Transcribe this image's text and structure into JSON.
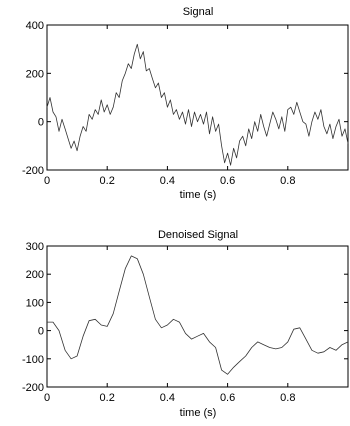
{
  "chart_data": [
    {
      "type": "line",
      "title": "Signal",
      "xlabel": "time (s)",
      "ylabel": "",
      "xlim": [
        0,
        1
      ],
      "ylim": [
        -200,
        400
      ],
      "xticks": [
        0,
        0.2,
        0.4,
        0.6,
        0.8
      ],
      "xtick_labels": [
        "0",
        "0.2",
        "0.4",
        "0.6",
        "0.8"
      ],
      "yticks": [
        -200,
        0,
        200,
        400
      ],
      "ytick_labels": [
        "-200",
        "0",
        "200",
        "400"
      ],
      "grid": false,
      "series": [
        {
          "x": [
            0,
            0.01,
            0.02,
            0.03,
            0.04,
            0.05,
            0.06,
            0.07,
            0.08,
            0.09,
            0.1,
            0.11,
            0.12,
            0.13,
            0.14,
            0.15,
            0.16,
            0.17,
            0.18,
            0.19,
            0.2,
            0.21,
            0.22,
            0.23,
            0.24,
            0.25,
            0.26,
            0.27,
            0.28,
            0.29,
            0.3,
            0.31,
            0.32,
            0.33,
            0.34,
            0.35,
            0.36,
            0.37,
            0.38,
            0.39,
            0.4,
            0.41,
            0.42,
            0.43,
            0.44,
            0.45,
            0.46,
            0.47,
            0.48,
            0.49,
            0.5,
            0.51,
            0.52,
            0.53,
            0.54,
            0.55,
            0.56,
            0.57,
            0.58,
            0.59,
            0.6,
            0.61,
            0.62,
            0.63,
            0.64,
            0.65,
            0.66,
            0.67,
            0.68,
            0.69,
            0.7,
            0.71,
            0.72,
            0.73,
            0.74,
            0.75,
            0.76,
            0.77,
            0.78,
            0.79,
            0.8,
            0.81,
            0.82,
            0.83,
            0.84,
            0.85,
            0.86,
            0.87,
            0.88,
            0.89,
            0.9,
            0.91,
            0.92,
            0.93,
            0.94,
            0.95,
            0.96,
            0.97,
            0.98,
            0.99,
            1.0
          ],
          "values": [
            60,
            100,
            40,
            20,
            -40,
            10,
            -30,
            -70,
            -110,
            -80,
            -120,
            -60,
            -20,
            -40,
            30,
            10,
            50,
            30,
            90,
            40,
            70,
            30,
            60,
            120,
            100,
            170,
            200,
            240,
            220,
            280,
            320,
            260,
            290,
            210,
            220,
            180,
            140,
            160,
            100,
            120,
            60,
            90,
            30,
            50,
            10,
            40,
            -10,
            50,
            -20,
            40,
            0,
            30,
            -10,
            40,
            -50,
            20,
            -40,
            -10,
            -100,
            -170,
            -130,
            -180,
            -110,
            -150,
            -80,
            -60,
            -100,
            -30,
            -70,
            0,
            -40,
            30,
            -20,
            -60,
            -10,
            40,
            10,
            -30,
            20,
            -40,
            50,
            60,
            30,
            80,
            40,
            0,
            -10,
            -60,
            0,
            40,
            10,
            50,
            -20,
            -50,
            -10,
            -70,
            -20,
            10,
            -60,
            -30,
            -90
          ]
        }
      ]
    },
    {
      "type": "line",
      "title": "Denoised Signal",
      "xlabel": "time (s)",
      "ylabel": "",
      "xlim": [
        0,
        1
      ],
      "ylim": [
        -200,
        300
      ],
      "xticks": [
        0,
        0.2,
        0.4,
        0.6,
        0.8
      ],
      "xtick_labels": [
        "0",
        "0.2",
        "0.4",
        "0.6",
        "0.8"
      ],
      "yticks": [
        -200,
        -100,
        0,
        100,
        200,
        300
      ],
      "ytick_labels": [
        "-200",
        "-100",
        "0",
        "100",
        "200",
        "300"
      ],
      "grid": false,
      "series": [
        {
          "x": [
            0,
            0.02,
            0.04,
            0.06,
            0.08,
            0.1,
            0.12,
            0.14,
            0.16,
            0.18,
            0.2,
            0.22,
            0.24,
            0.26,
            0.28,
            0.3,
            0.32,
            0.34,
            0.36,
            0.38,
            0.4,
            0.42,
            0.44,
            0.46,
            0.48,
            0.5,
            0.52,
            0.54,
            0.56,
            0.58,
            0.6,
            0.62,
            0.64,
            0.66,
            0.68,
            0.7,
            0.72,
            0.74,
            0.76,
            0.78,
            0.8,
            0.82,
            0.84,
            0.86,
            0.88,
            0.9,
            0.92,
            0.94,
            0.96,
            0.98,
            1.0
          ],
          "values": [
            30,
            30,
            0,
            -70,
            -100,
            -90,
            -20,
            35,
            40,
            20,
            15,
            60,
            140,
            220,
            265,
            255,
            200,
            120,
            40,
            10,
            20,
            40,
            30,
            -10,
            -30,
            -20,
            -10,
            -40,
            -60,
            -140,
            -155,
            -130,
            -110,
            -90,
            -60,
            -40,
            -50,
            -60,
            -65,
            -60,
            -40,
            5,
            10,
            -30,
            -70,
            -80,
            -75,
            -60,
            -70,
            -50,
            -40
          ]
        }
      ]
    }
  ]
}
